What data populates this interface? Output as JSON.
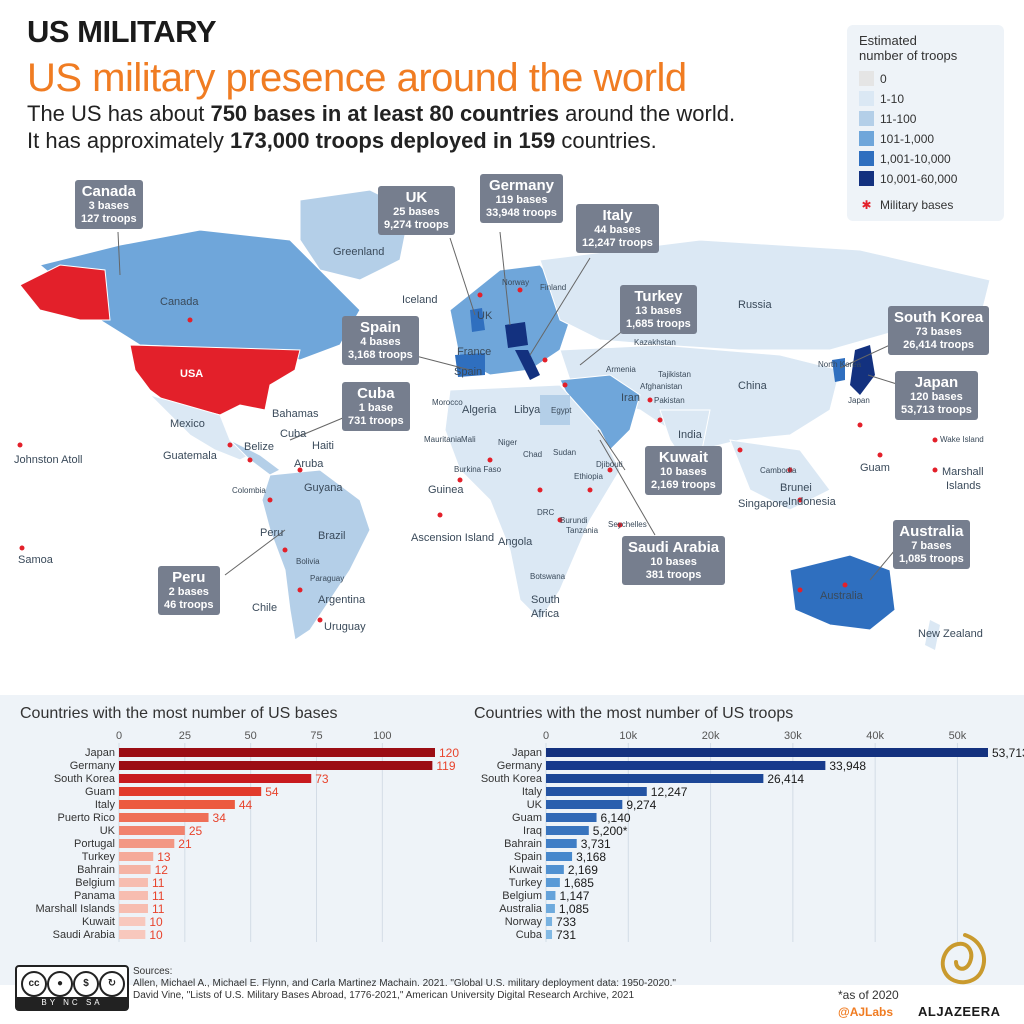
{
  "header": {
    "kicker": "US MILITARY",
    "title": "US military presence around the world",
    "sub1_a": "The US has about ",
    "sub1_b": "750 bases in at least 80 countries",
    "sub1_c": " around the world.",
    "sub2_a": "It has approximately ",
    "sub2_b": "173,000 troops deployed in 159",
    "sub2_c": " countries."
  },
  "legend": {
    "title_1": "Estimated",
    "title_2": "number of troops",
    "items": [
      {
        "label": "0",
        "color": "#e5e5e5"
      },
      {
        "label": "1-10",
        "color": "#dbe8f4"
      },
      {
        "label": "11-100",
        "color": "#b4cfe8"
      },
      {
        "label": "101-1,000",
        "color": "#6fa6da"
      },
      {
        "label": "1,001-10,000",
        "color": "#2f6fbf"
      },
      {
        "label": "10,001-60,000",
        "color": "#13317f"
      }
    ],
    "bases_label": "Military bases",
    "base_color": "#e3202a"
  },
  "callouts": {
    "canada": {
      "name": "Canada",
      "bases": "3 bases",
      "troops": "127 troops"
    },
    "uk": {
      "name": "UK",
      "bases": "25 bases",
      "troops": "9,274 troops"
    },
    "germany": {
      "name": "Germany",
      "bases": "119 bases",
      "troops": "33,948 troops"
    },
    "italy": {
      "name": "Italy",
      "bases": "44 bases",
      "troops": "12,247 troops"
    },
    "turkey": {
      "name": "Turkey",
      "bases": "13 bases",
      "troops": "1,685 troops"
    },
    "spain": {
      "name": "Spain",
      "bases": "4 bases",
      "troops": "3,168 troops"
    },
    "cuba": {
      "name": "Cuba",
      "bases": "1 base",
      "troops": "731 troops"
    },
    "southkorea": {
      "name": "South Korea",
      "bases": "73 bases",
      "troops": "26,414 troops"
    },
    "japan": {
      "name": "Japan",
      "bases": "120 bases",
      "troops": "53,713 troops"
    },
    "kuwait": {
      "name": "Kuwait",
      "bases": "10 bases",
      "troops": "2,169 troops"
    },
    "saudi": {
      "name": "Saudi Arabia",
      "bases": "10 bases",
      "troops": "381 troops"
    },
    "australia": {
      "name": "Australia",
      "bases": "7 bases",
      "troops": "1,085 troops"
    },
    "peru": {
      "name": "Peru",
      "bases": "2 bases",
      "troops": "46 troops"
    }
  },
  "map_labels": {
    "usa": "USA",
    "canada": "Canada",
    "greenland": "Greenland",
    "iceland": "Iceland",
    "russia": "Russia",
    "kazakhstan": "Kazakhstan",
    "china": "China",
    "india": "India",
    "mexico": "Mexico",
    "bahamas": "Bahamas",
    "cuba": "Cuba",
    "haiti": "Haiti",
    "belize": "Belize",
    "guatemala": "Guatemala",
    "aruba": "Aruba",
    "colombia": "Colombia",
    "guyana": "Guyana",
    "peru": "Peru",
    "brazil": "Brazil",
    "bolivia": "Bolivia",
    "paraguay": "Paraguay",
    "chile": "Chile",
    "argentina": "Argentina",
    "uruguay": "Uruguay",
    "johnston": "Johnston Atoll",
    "samoa": "Samoa",
    "ascension": "Ascension Island",
    "algeria": "Algeria",
    "libya": "Libya",
    "egypt": "Egypt",
    "morocco": "Morocco",
    "mauritania": "Mauritania",
    "mali": "Mali",
    "niger": "Niger",
    "chad": "Chad",
    "sudan": "Sudan",
    "burkina": "Burkina Faso",
    "guinea": "Guinea",
    "ethiopia": "Ethiopia",
    "djibouti": "Djibouti",
    "drc": "DRC",
    "burundi": "Burundi",
    "tanzania": "Tanzania",
    "seychelles": "Seychelles",
    "angola": "Angola",
    "botswana": "Botswana",
    "southafrica_1": "South",
    "southafrica_2": "Africa",
    "norway": "Norway",
    "finland": "Finland",
    "uk": "UK",
    "france": "France",
    "spain": "Spain",
    "armenia": "Armenia",
    "iran": "Iran",
    "afghanistan": "Afghanistan",
    "pakistan": "Pakistan",
    "tajikistan": "Tajikistan",
    "northkorea": "North Korea",
    "japan": "Japan",
    "cambodia": "Cambodia",
    "brunei": "Brunei",
    "indonesia": "Indonesia",
    "singapore": "Singapore",
    "guam": "Guam",
    "wake": "Wake Island",
    "marshall_1": "Marshall",
    "marshall_2": "Islands",
    "australia": "Australia",
    "newzealand": "New Zealand"
  },
  "charts": {
    "bases_title": "Countries with the most number of US bases",
    "troops_title": "Countries with the most number of US troops"
  },
  "chart_data": [
    {
      "type": "bar",
      "title": "Countries with the most number of US bases",
      "categories": [
        "Japan",
        "Germany",
        "South Korea",
        "Guam",
        "Italy",
        "Puerto Rico",
        "UK",
        "Portugal",
        "Turkey",
        "Bahrain",
        "Belgium",
        "Panama",
        "Marshall Islands",
        "Kuwait",
        "Saudi Arabia"
      ],
      "values": [
        120,
        119,
        73,
        54,
        44,
        34,
        25,
        21,
        13,
        12,
        11,
        11,
        11,
        10,
        10
      ],
      "value_labels": [
        "120",
        "119",
        "73",
        "54",
        "44",
        "34",
        "25",
        "21",
        "13",
        "12",
        "11",
        "11",
        "11",
        "10",
        "10"
      ],
      "ticks": [
        "0",
        "25",
        "50",
        "75",
        "100"
      ],
      "tick_values": [
        0,
        25,
        50,
        75,
        100
      ],
      "xlim": [
        0,
        120
      ],
      "colors": [
        "#9b0d14",
        "#9b0d14",
        "#c81a1f",
        "#e23b2c",
        "#ec5a3f",
        "#ef6f57",
        "#f1836e",
        "#f39784",
        "#f5aa9a",
        "#f5b3a4",
        "#f7bdb0",
        "#f7bdb0",
        "#f7bdb0",
        "#f8c8bd",
        "#f8c8bd"
      ],
      "label_color": "#e8442d"
    },
    {
      "type": "bar",
      "title": "Countries with the most number of US troops",
      "categories": [
        "Japan",
        "Germany",
        "South Korea",
        "Italy",
        "UK",
        "Guam",
        "Iraq",
        "Bahrain",
        "Spain",
        "Kuwait",
        "Turkey",
        "Belgium",
        "Australia",
        "Norway",
        "Cuba"
      ],
      "values": [
        53713,
        33948,
        26414,
        12247,
        9274,
        6140,
        5200,
        3731,
        3168,
        2169,
        1685,
        1147,
        1085,
        733,
        731
      ],
      "value_labels": [
        "53,713",
        "33,948",
        "26,414",
        "12,247",
        "9,274",
        "6,140",
        "5,200*",
        "3,731",
        "3,168",
        "2,169",
        "1,685",
        "1,147",
        "1,085",
        "733",
        "731"
      ],
      "ticks": [
        "0",
        "10k",
        "20k",
        "30k",
        "40k",
        "50k"
      ],
      "tick_values": [
        0,
        10000,
        20000,
        30000,
        40000,
        50000
      ],
      "xlim": [
        0,
        53713
      ],
      "colors": [
        "#13317f",
        "#173a8c",
        "#1c4696",
        "#2353a3",
        "#2a5fae",
        "#3169b6",
        "#3874be",
        "#3f7ec6",
        "#4788cc",
        "#5091d1",
        "#5a9ad6",
        "#64a2da",
        "#6eaadd",
        "#78b2e1",
        "#82b9e4"
      ],
      "label_color": "#1a1a1a"
    }
  ],
  "footer": {
    "cc_1": "cc",
    "cc_2": "BY",
    "cc_3": "NC",
    "cc_4": "SA",
    "sources_title": "Sources:",
    "source_1": "Allen, Michael A., Michael E. Flynn, and Carla Martinez Machain. 2021. \"Global U.S. military deployment data: 1950-2020.\"",
    "source_2": "David Vine, \"Lists of U.S. Military Bases Abroad, 1776-2021,\" American University Digital Research Archive, 2021",
    "as_of": "*as of 2020",
    "ajlabs": "@AJLabs",
    "brand": "ALJAZEERA"
  }
}
